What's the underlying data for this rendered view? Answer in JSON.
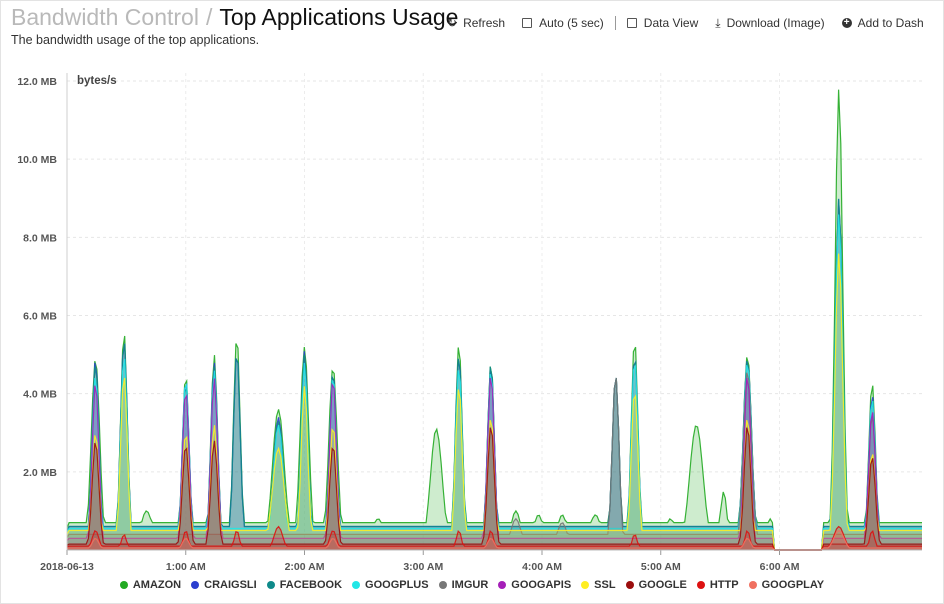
{
  "header": {
    "breadcrumb_parent": "Bandwidth Control",
    "breadcrumb_sep": "/",
    "title": "Top Applications Usage",
    "subtitle": "The bandwidth usage of the top applications."
  },
  "toolbar": {
    "refresh_label": "Refresh",
    "auto_label": "Auto (5 sec)",
    "data_view_label": "Data View",
    "download_label": "Download (Image)",
    "add_label": "Add to Dash"
  },
  "colors": {
    "AMAZON": "#22aa22",
    "CRAIGSLI": "#2b3fcf",
    "FACEBOOK": "#0f8a8a",
    "GOOGPLUS": "#22e6e6",
    "IMGUR": "#777777",
    "GOOGAPIS": "#a51fb8",
    "SSL": "#ffee22",
    "GOOGLE": "#9b0d0d",
    "HTTP": "#dd1111",
    "GOOGPLAY": "#f07060"
  },
  "chart_data": {
    "type": "area",
    "stacked": false,
    "ylabel": "bytes/s",
    "ylim": [
      0,
      12
    ],
    "yticks": [
      "2.0 MB",
      "4.0 MB",
      "6.0 MB",
      "8.0 MB",
      "10.0 MB",
      "12.0 MB"
    ],
    "ytick_values": [
      2,
      4,
      6,
      8,
      10,
      12
    ],
    "y_unit": "MB",
    "xlim": [
      0,
      7.2
    ],
    "xticks": [
      "2018-06-13",
      "1:00 AM",
      "2:00 AM",
      "3:00 AM",
      "4:00 AM",
      "5:00 AM",
      "6:00 AM"
    ],
    "xtick_values": [
      0,
      1,
      2,
      3,
      4,
      5,
      6
    ],
    "x_unit": "hours after 2018-06-13 00:00",
    "grid": true,
    "legend": "bottom",
    "series": [
      {
        "name": "AMAZON",
        "peaks": [
          [
            0.24,
            4.9,
            0.05
          ],
          [
            0.48,
            5.6,
            0.04
          ],
          [
            0.67,
            1.0,
            0.07
          ],
          [
            1.0,
            4.5,
            0.04
          ],
          [
            1.24,
            5.0,
            0.04
          ],
          [
            1.43,
            5.5,
            0.04
          ],
          [
            1.57,
            0.7,
            0.05
          ],
          [
            1.78,
            3.6,
            0.07
          ],
          [
            2.0,
            5.2,
            0.05
          ],
          [
            2.24,
            4.7,
            0.05
          ],
          [
            2.62,
            0.8,
            0.07
          ],
          [
            3.11,
            3.1,
            0.07
          ],
          [
            3.3,
            5.3,
            0.04
          ],
          [
            3.57,
            4.8,
            0.04
          ],
          [
            3.78,
            1.0,
            0.06
          ],
          [
            3.97,
            0.9,
            0.06
          ],
          [
            4.17,
            0.9,
            0.06
          ],
          [
            4.45,
            0.9,
            0.07
          ],
          [
            4.62,
            4.5,
            0.04
          ],
          [
            4.78,
            5.4,
            0.04
          ],
          [
            5.08,
            0.8,
            0.06
          ],
          [
            5.3,
            3.2,
            0.08
          ],
          [
            5.53,
            1.5,
            0.04
          ],
          [
            5.73,
            5.0,
            0.05
          ],
          [
            5.92,
            0.8,
            0.04
          ],
          [
            6.5,
            11.8,
            0.045
          ],
          [
            6.78,
            4.3,
            0.04
          ]
        ],
        "base": 0.7
      },
      {
        "name": "CRAIGSLI",
        "peaks": [
          [
            0.24,
            4.9,
            0.04
          ],
          [
            0.48,
            5.4,
            0.04
          ],
          [
            1.0,
            4.4,
            0.04
          ],
          [
            1.24,
            4.8,
            0.04
          ],
          [
            1.43,
            5.1,
            0.04
          ],
          [
            1.78,
            3.4,
            0.06
          ],
          [
            2.0,
            5.1,
            0.04
          ],
          [
            2.24,
            4.6,
            0.04
          ],
          [
            3.3,
            5.0,
            0.04
          ],
          [
            3.57,
            4.7,
            0.04
          ],
          [
            4.62,
            4.5,
            0.04
          ],
          [
            4.78,
            5.0,
            0.04
          ],
          [
            5.73,
            4.9,
            0.05
          ],
          [
            6.5,
            9.0,
            0.045
          ],
          [
            6.78,
            4.0,
            0.04
          ]
        ],
        "base": 0.6
      },
      {
        "name": "FACEBOOK",
        "peaks": [
          [
            0.24,
            4.8,
            0.04
          ],
          [
            0.48,
            5.4,
            0.04
          ],
          [
            1.0,
            4.3,
            0.04
          ],
          [
            1.24,
            4.7,
            0.04
          ],
          [
            1.43,
            5.1,
            0.04
          ],
          [
            1.78,
            3.3,
            0.06
          ],
          [
            2.0,
            5.0,
            0.04
          ],
          [
            2.24,
            4.6,
            0.04
          ],
          [
            3.3,
            5.0,
            0.04
          ],
          [
            3.57,
            4.8,
            0.04
          ],
          [
            4.62,
            4.5,
            0.04
          ],
          [
            4.78,
            5.0,
            0.04
          ],
          [
            5.73,
            4.9,
            0.05
          ],
          [
            6.5,
            9.0,
            0.045
          ],
          [
            6.78,
            3.9,
            0.04
          ]
        ],
        "base": 0.6
      },
      {
        "name": "GOOGPLUS",
        "peaks": [
          [
            0.24,
            4.5,
            0.04
          ],
          [
            0.48,
            5.0,
            0.04
          ],
          [
            1.0,
            4.4,
            0.04
          ],
          [
            1.24,
            4.6,
            0.04
          ],
          [
            1.78,
            3.2,
            0.06
          ],
          [
            2.0,
            4.8,
            0.04
          ],
          [
            2.24,
            4.5,
            0.04
          ],
          [
            3.3,
            4.7,
            0.04
          ],
          [
            3.57,
            4.6,
            0.04
          ],
          [
            4.78,
            4.9,
            0.04
          ],
          [
            5.73,
            4.8,
            0.05
          ],
          [
            6.5,
            8.6,
            0.045
          ],
          [
            6.78,
            3.9,
            0.04
          ]
        ],
        "base": 0.55
      },
      {
        "name": "IMGUR",
        "peaks": [
          [
            4.62,
            4.5,
            0.04
          ],
          [
            5.73,
            4.6,
            0.05
          ],
          [
            3.78,
            0.8,
            0.06
          ],
          [
            4.17,
            0.7,
            0.06
          ],
          [
            6.78,
            3.5,
            0.04
          ]
        ],
        "base": 0.4
      },
      {
        "name": "GOOGAPIS",
        "peaks": [
          [
            0.24,
            4.3,
            0.04
          ],
          [
            1.0,
            4.1,
            0.04
          ],
          [
            1.24,
            4.4,
            0.04
          ],
          [
            2.24,
            4.4,
            0.04
          ],
          [
            3.57,
            4.5,
            0.04
          ],
          [
            5.73,
            4.5,
            0.04
          ],
          [
            6.78,
            3.6,
            0.04
          ]
        ],
        "base": 0.3
      },
      {
        "name": "SSL",
        "peaks": [
          [
            0.24,
            3.0,
            0.04
          ],
          [
            0.48,
            4.5,
            0.04
          ],
          [
            1.0,
            3.0,
            0.04
          ],
          [
            1.24,
            3.2,
            0.04
          ],
          [
            1.78,
            2.6,
            0.07
          ],
          [
            2.0,
            4.2,
            0.04
          ],
          [
            2.24,
            3.2,
            0.04
          ],
          [
            3.3,
            4.2,
            0.04
          ],
          [
            3.57,
            3.4,
            0.04
          ],
          [
            4.78,
            4.1,
            0.04
          ],
          [
            5.73,
            3.4,
            0.04
          ],
          [
            6.5,
            7.6,
            0.045
          ],
          [
            6.78,
            2.5,
            0.04
          ]
        ],
        "base": 0.5
      },
      {
        "name": "GOOGLE",
        "peaks": [
          [
            0.24,
            2.8,
            0.04
          ],
          [
            1.0,
            2.7,
            0.04
          ],
          [
            1.24,
            2.8,
            0.04
          ],
          [
            2.24,
            2.7,
            0.04
          ],
          [
            3.57,
            3.2,
            0.04
          ],
          [
            5.73,
            3.2,
            0.04
          ],
          [
            6.78,
            2.4,
            0.04
          ]
        ],
        "base": 0.15
      },
      {
        "name": "HTTP",
        "peaks": [
          [
            0.24,
            0.5,
            0.04
          ],
          [
            0.48,
            0.4,
            0.03
          ],
          [
            1.0,
            0.5,
            0.03
          ],
          [
            1.43,
            0.5,
            0.03
          ],
          [
            1.78,
            0.6,
            0.05
          ],
          [
            2.24,
            0.5,
            0.04
          ],
          [
            3.3,
            0.5,
            0.03
          ],
          [
            3.57,
            0.5,
            0.03
          ],
          [
            4.78,
            0.4,
            0.03
          ],
          [
            5.73,
            0.5,
            0.03
          ],
          [
            6.5,
            0.6,
            0.06
          ],
          [
            6.78,
            0.5,
            0.03
          ]
        ],
        "base": 0.1
      },
      {
        "name": "GOOGPLAY",
        "peaks": [
          [
            0.24,
            0.3,
            0.04
          ],
          [
            1.0,
            0.3,
            0.04
          ],
          [
            2.24,
            0.3,
            0.04
          ],
          [
            3.57,
            0.3,
            0.04
          ],
          [
            5.73,
            0.3,
            0.04
          ],
          [
            6.5,
            0.5,
            0.06
          ]
        ],
        "base": 0.05
      }
    ]
  }
}
